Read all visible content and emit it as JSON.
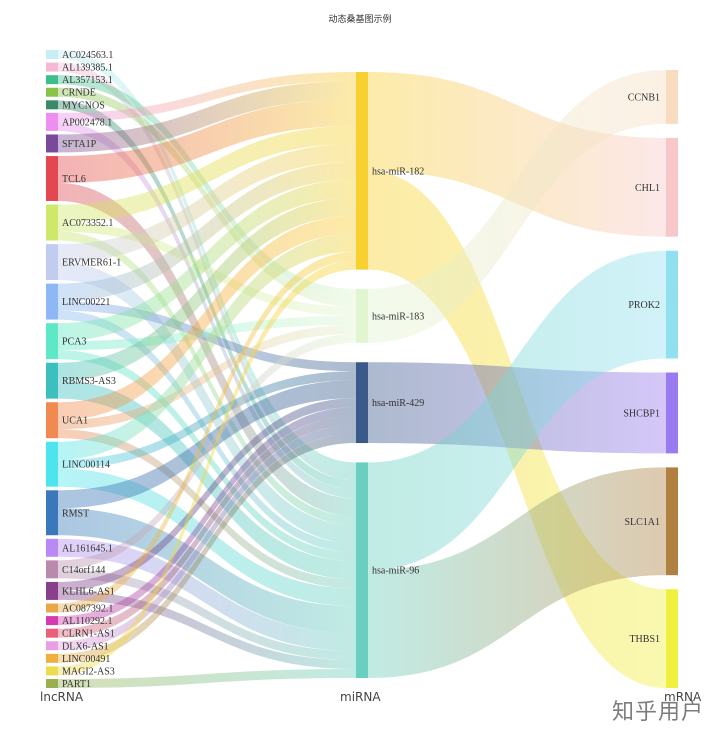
{
  "chart_data": {
    "type": "sankey",
    "title": "动态桑基图示例",
    "columns": [
      "lncRNA",
      "miRNA",
      "mRNA"
    ],
    "nodes": [
      {
        "name": "AC024563.1",
        "column": 0,
        "color": "#c6eef4"
      },
      {
        "name": "AL139385.1",
        "column": 0,
        "color": "#f5b8d6"
      },
      {
        "name": "AL357153.1",
        "column": 0,
        "color": "#3cbf8c"
      },
      {
        "name": "CRNDE",
        "column": 0,
        "color": "#8bc34a"
      },
      {
        "name": "MYCNOS",
        "column": 0,
        "color": "#3a8a6a"
      },
      {
        "name": "AP002478.1",
        "column": 0,
        "color": "#ee8ef0"
      },
      {
        "name": "SFTA1P",
        "column": 0,
        "color": "#7a4a9a"
      },
      {
        "name": "TCL6",
        "column": 0,
        "color": "#e3474f"
      },
      {
        "name": "AC073352.1",
        "column": 0,
        "color": "#cde86a"
      },
      {
        "name": "ERVMER61-1",
        "column": 0,
        "color": "#c2cbf0"
      },
      {
        "name": "LINC00221",
        "column": 0,
        "color": "#8db8f5"
      },
      {
        "name": "PCA3",
        "column": 0,
        "color": "#5ee8c8"
      },
      {
        "name": "RBMS3-AS3",
        "column": 0,
        "color": "#3cbfbf"
      },
      {
        "name": "UCA1",
        "column": 0,
        "color": "#f08a50"
      },
      {
        "name": "LINC00114",
        "column": 0,
        "color": "#4ee4ee"
      },
      {
        "name": "RMST",
        "column": 0,
        "color": "#3a78bb"
      },
      {
        "name": "AL161645.1",
        "column": 0,
        "color": "#b98af5"
      },
      {
        "name": "C14orf144",
        "column": 0,
        "color": "#b98aae"
      },
      {
        "name": "KLHL6-AS1",
        "column": 0,
        "color": "#8a3f8a"
      },
      {
        "name": "AC087392.1",
        "column": 0,
        "color": "#e8a848"
      },
      {
        "name": "AL110292.1",
        "column": 0,
        "color": "#d63aaf"
      },
      {
        "name": "CLRN1-AS1",
        "column": 0,
        "color": "#e8607a"
      },
      {
        "name": "DLX6-AS1",
        "column": 0,
        "color": "#e8a0e0"
      },
      {
        "name": "LINC00491",
        "column": 0,
        "color": "#f0b040"
      },
      {
        "name": "MAGI2-AS3",
        "column": 0,
        "color": "#ecdc50"
      },
      {
        "name": "PART1",
        "column": 0,
        "color": "#9ab050"
      },
      {
        "name": "hsa-miR-182",
        "column": 1,
        "color": "#f8d030"
      },
      {
        "name": "hsa-miR-183",
        "column": 1,
        "color": "#e0f5d0"
      },
      {
        "name": "hsa-miR-429",
        "column": 1,
        "color": "#3a5a8a"
      },
      {
        "name": "hsa-miR-96",
        "column": 1,
        "color": "#6acfbf"
      },
      {
        "name": "CCNB1",
        "column": 2,
        "color": "#f8dcc0"
      },
      {
        "name": "CHL1",
        "column": 2,
        "color": "#f8c8c8"
      },
      {
        "name": "PROK2",
        "column": 2,
        "color": "#90e0f0"
      },
      {
        "name": "SHCBP1",
        "column": 2,
        "color": "#9a7af0"
      },
      {
        "name": "SLC1A1",
        "column": 2,
        "color": "#b08040"
      },
      {
        "name": "THBS1",
        "column": 2,
        "color": "#f0f040"
      }
    ],
    "links": [
      [
        "AC024563.1",
        "hsa-miR-96",
        1
      ],
      [
        "AL139385.1",
        "hsa-miR-96",
        1
      ],
      [
        "AL357153.1",
        "hsa-miR-183",
        1
      ],
      [
        "CRNDE",
        "hsa-miR-183",
        1
      ],
      [
        "MYCNOS",
        "hsa-miR-96",
        1
      ],
      [
        "AP002478.1",
        "hsa-miR-182",
        1
      ],
      [
        "AP002478.1",
        "hsa-miR-96",
        1
      ],
      [
        "SFTA1P",
        "hsa-miR-182",
        2
      ],
      [
        "TCL6",
        "hsa-miR-182",
        3
      ],
      [
        "TCL6",
        "hsa-miR-96",
        2
      ],
      [
        "AC073352.1",
        "hsa-miR-182",
        2
      ],
      [
        "AC073352.1",
        "hsa-miR-183",
        1
      ],
      [
        "AC073352.1",
        "hsa-miR-96",
        1
      ],
      [
        "ERVMER61-1",
        "hsa-miR-182",
        2
      ],
      [
        "ERVMER61-1",
        "hsa-miR-96",
        2
      ],
      [
        "LINC00221",
        "hsa-miR-182",
        2
      ],
      [
        "LINC00221",
        "hsa-miR-429",
        1
      ],
      [
        "LINC00221",
        "hsa-miR-96",
        1
      ],
      [
        "PCA3",
        "hsa-miR-182",
        2
      ],
      [
        "PCA3",
        "hsa-miR-183",
        1
      ],
      [
        "PCA3",
        "hsa-miR-96",
        1
      ],
      [
        "RBMS3-AS3",
        "hsa-miR-182",
        2
      ],
      [
        "RBMS3-AS3",
        "hsa-miR-96",
        2
      ],
      [
        "UCA1",
        "hsa-miR-182",
        2
      ],
      [
        "UCA1",
        "hsa-miR-183",
        1
      ],
      [
        "UCA1",
        "hsa-miR-96",
        1
      ],
      [
        "LINC00114",
        "hsa-miR-182",
        2
      ],
      [
        "LINC00114",
        "hsa-miR-429",
        1
      ],
      [
        "LINC00114",
        "hsa-miR-96",
        2
      ],
      [
        "RMST",
        "hsa-miR-429",
        2
      ],
      [
        "RMST",
        "hsa-miR-96",
        3
      ],
      [
        "AL161645.1",
        "hsa-miR-96",
        2
      ],
      [
        "C14orf144",
        "hsa-miR-183",
        1
      ],
      [
        "C14orf144",
        "hsa-miR-96",
        1
      ],
      [
        "KLHL6-AS1",
        "hsa-miR-429",
        1
      ],
      [
        "KLHL6-AS1",
        "hsa-miR-96",
        1
      ],
      [
        "AC087392.1",
        "hsa-miR-182",
        1
      ],
      [
        "AL110292.1",
        "hsa-miR-429",
        1
      ],
      [
        "CLRN1-AS1",
        "hsa-miR-429",
        1
      ],
      [
        "DLX6-AS1",
        "hsa-miR-429",
        1
      ],
      [
        "LINC00491",
        "hsa-miR-429",
        1
      ],
      [
        "MAGI2-AS3",
        "hsa-miR-182",
        1
      ],
      [
        "PART1",
        "hsa-miR-96",
        1
      ],
      [
        "hsa-miR-182",
        "CHL1",
        11
      ],
      [
        "hsa-miR-182",
        "THBS1",
        11
      ],
      [
        "hsa-miR-183",
        "CCNB1",
        6
      ],
      [
        "hsa-miR-429",
        "SHCBP1",
        9
      ],
      [
        "hsa-miR-96",
        "PROK2",
        12
      ],
      [
        "hsa-miR-96",
        "SLC1A1",
        12
      ]
    ]
  },
  "watermark": "知乎用户"
}
